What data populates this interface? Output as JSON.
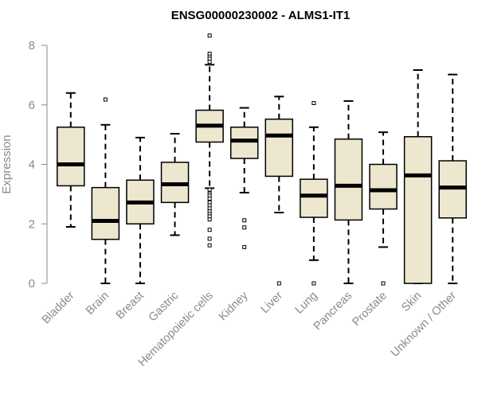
{
  "chart_data": {
    "type": "boxplot",
    "title": "ENSG00000230002 - ALMS1-IT1",
    "xlabel": "",
    "ylabel": "Expression",
    "ylim": [
      0,
      8.4
    ],
    "yticks": [
      0,
      2,
      4,
      6,
      8
    ],
    "categories": [
      "Bladder",
      "Brain",
      "Breast",
      "Gastric",
      "Hematopoietic cells",
      "Kidney",
      "Liver",
      "Lung",
      "Pancreas",
      "Prostate",
      "Skin",
      "Unknown / Other"
    ],
    "boxes": [
      {
        "category": "Bladder",
        "min": 1.9,
        "q1": 3.28,
        "median": 4.0,
        "q3": 5.25,
        "max": 6.4,
        "outliers": []
      },
      {
        "category": "Brain",
        "min": 0.0,
        "q1": 1.48,
        "median": 2.1,
        "q3": 3.22,
        "max": 5.33,
        "outliers": [
          6.18
        ]
      },
      {
        "category": "Breast",
        "min": 0.0,
        "q1": 2.0,
        "median": 2.72,
        "q3": 3.47,
        "max": 4.9,
        "outliers": []
      },
      {
        "category": "Gastric",
        "min": 1.62,
        "q1": 2.72,
        "median": 3.33,
        "q3": 4.07,
        "max": 5.03,
        "outliers": []
      },
      {
        "category": "Hematopoietic cells",
        "min": 3.2,
        "q1": 4.75,
        "median": 5.3,
        "q3": 5.82,
        "max": 7.35,
        "outliers": [
          8.33,
          7.72,
          7.62,
          7.55,
          7.45,
          3.15,
          3.02,
          2.95,
          2.85,
          2.72,
          2.62,
          2.52,
          2.42,
          2.33,
          2.25,
          2.15,
          1.8,
          1.5,
          1.28
        ]
      },
      {
        "category": "Kidney",
        "min": 3.05,
        "q1": 4.2,
        "median": 4.8,
        "q3": 5.25,
        "max": 5.9,
        "outliers": [
          2.12,
          1.88,
          1.22
        ]
      },
      {
        "category": "Liver",
        "min": 2.38,
        "q1": 3.6,
        "median": 4.97,
        "q3": 5.52,
        "max": 6.28,
        "outliers": [
          0.0
        ]
      },
      {
        "category": "Lung",
        "min": 0.78,
        "q1": 2.22,
        "median": 2.95,
        "q3": 3.5,
        "max": 5.25,
        "outliers": [
          6.06,
          0.0
        ]
      },
      {
        "category": "Pancreas",
        "min": 0.0,
        "q1": 2.13,
        "median": 3.28,
        "q3": 4.85,
        "max": 6.13,
        "outliers": []
      },
      {
        "category": "Prostate",
        "min": 1.22,
        "q1": 2.5,
        "median": 3.13,
        "q3": 4.0,
        "max": 5.08,
        "outliers": [
          0.0
        ]
      },
      {
        "category": "Skin",
        "min": 0.0,
        "q1": 0.0,
        "median": 3.63,
        "q3": 4.93,
        "max": 7.17,
        "outliers": []
      },
      {
        "category": "Unknown / Other",
        "min": 0.0,
        "q1": 2.2,
        "median": 3.22,
        "q3": 4.12,
        "max": 7.02,
        "outliers": []
      }
    ],
    "box_fill": "#ede7cf",
    "box_stroke": "#000000",
    "axis_color": "#8a8a8a",
    "grid": false,
    "legend": "none"
  }
}
